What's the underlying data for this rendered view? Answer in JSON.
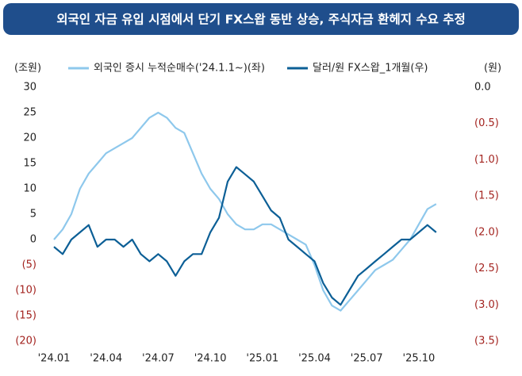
{
  "chart_data": {
    "type": "line",
    "title": "외국인 자금 유입 시점에서 단기 FX스왑 동반 상승, 주식자금 환헤지 수요 추정",
    "y_label": "(조원)",
    "y2_label": "(원)",
    "categories": [
      "'24.01",
      null,
      null,
      null,
      null,
      null,
      "'24.04",
      null,
      null,
      null,
      null,
      null,
      "'24.07",
      null,
      null,
      null,
      null,
      null,
      "'24.10",
      null,
      null,
      null,
      null,
      null,
      "'25.01",
      null,
      null,
      null,
      null,
      null,
      "'25.04",
      null,
      null,
      null,
      null,
      null,
      "'25.07",
      null,
      null,
      null,
      null,
      null,
      "'25.10",
      null,
      null
    ],
    "series": [
      {
        "name": "외국인 증시 누적순매수('24.1.1~)(좌)",
        "color": "#8ec8ec",
        "values": [
          0,
          2,
          5,
          10,
          13,
          15,
          17,
          18,
          19,
          20,
          22,
          24,
          25,
          24,
          22,
          21,
          17,
          13,
          10,
          8,
          5,
          3,
          2,
          2,
          3,
          3,
          2,
          1,
          0,
          -1,
          -5,
          -10,
          -13,
          -14,
          -12,
          -10,
          -8,
          -6,
          -5,
          -4,
          -2,
          0,
          3,
          6,
          7
        ]
      },
      {
        "name": "달러/원 FX스왑_1개월(우)",
        "color": "#0c5f96",
        "axis": "y2",
        "values": [
          -2.2,
          -2.3,
          -2.1,
          -2.0,
          -1.9,
          -2.2,
          -2.1,
          -2.1,
          -2.2,
          -2.1,
          -2.3,
          -2.4,
          -2.3,
          -2.4,
          -2.6,
          -2.4,
          -2.3,
          -2.3,
          -2.0,
          -1.8,
          -1.3,
          -1.1,
          -1.2,
          -1.3,
          -1.5,
          -1.7,
          -1.8,
          -2.1,
          -2.2,
          -2.3,
          -2.4,
          -2.7,
          -2.9,
          -3.0,
          -2.8,
          -2.6,
          -2.5,
          -2.4,
          -2.3,
          -2.2,
          -2.1,
          -2.1,
          -2.0,
          -1.9,
          -2.0
        ]
      }
    ],
    "ylim": [
      -20,
      30
    ],
    "yticks": [
      30,
      25,
      20,
      15,
      10,
      5,
      0,
      {
        "value": -5,
        "label": "(5)"
      },
      {
        "value": -10,
        "label": "(10)"
      },
      {
        "value": -15,
        "label": "(15)"
      },
      {
        "value": -20,
        "label": "(20)"
      }
    ],
    "y2lim": [
      -3.5,
      0
    ],
    "y2ticks": [
      {
        "value": 0,
        "label": "0.0"
      },
      {
        "value": -0.5,
        "label": "(0.5)"
      },
      {
        "value": -1.0,
        "label": "(1.0)"
      },
      {
        "value": -1.5,
        "label": "(1.5)"
      },
      {
        "value": -2.0,
        "label": "(2.0)"
      },
      {
        "value": -2.5,
        "label": "(2.5)"
      },
      {
        "value": -3.0,
        "label": "(3.0)"
      },
      {
        "value": -3.5,
        "label": "(3.5)"
      }
    ],
    "negative_color": "#a3231f"
  }
}
